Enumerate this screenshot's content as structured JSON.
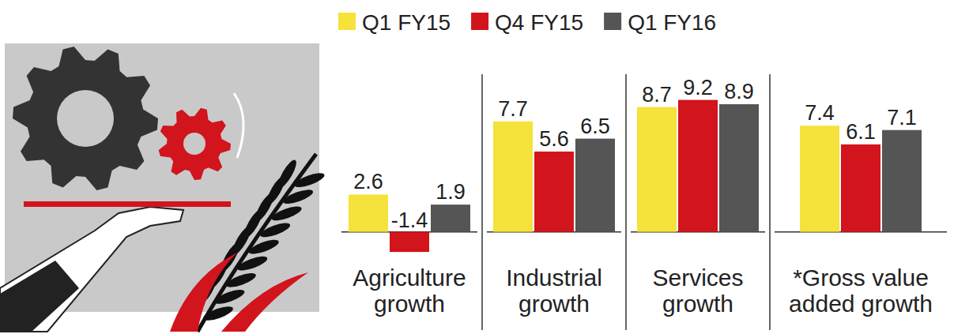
{
  "chart_data": {
    "type": "bar",
    "categories": [
      "Agriculture growth",
      "Industrial growth",
      "Services growth",
      "*Gross value added growth"
    ],
    "series": [
      {
        "name": "Q1 FY15",
        "color": "#f5e23a",
        "values": [
          2.6,
          7.7,
          8.7,
          7.4
        ]
      },
      {
        "name": "Q4 FY15",
        "color": "#d2141c",
        "values": [
          -1.4,
          5.6,
          9.2,
          6.1
        ]
      },
      {
        "name": "Q1 FY16",
        "color": "#555555",
        "values": [
          1.9,
          6.5,
          8.9,
          7.1
        ]
      }
    ],
    "ylim": [
      -2,
      10
    ],
    "data_labels": true,
    "tick_labels": "x",
    "legend": "top"
  }
}
